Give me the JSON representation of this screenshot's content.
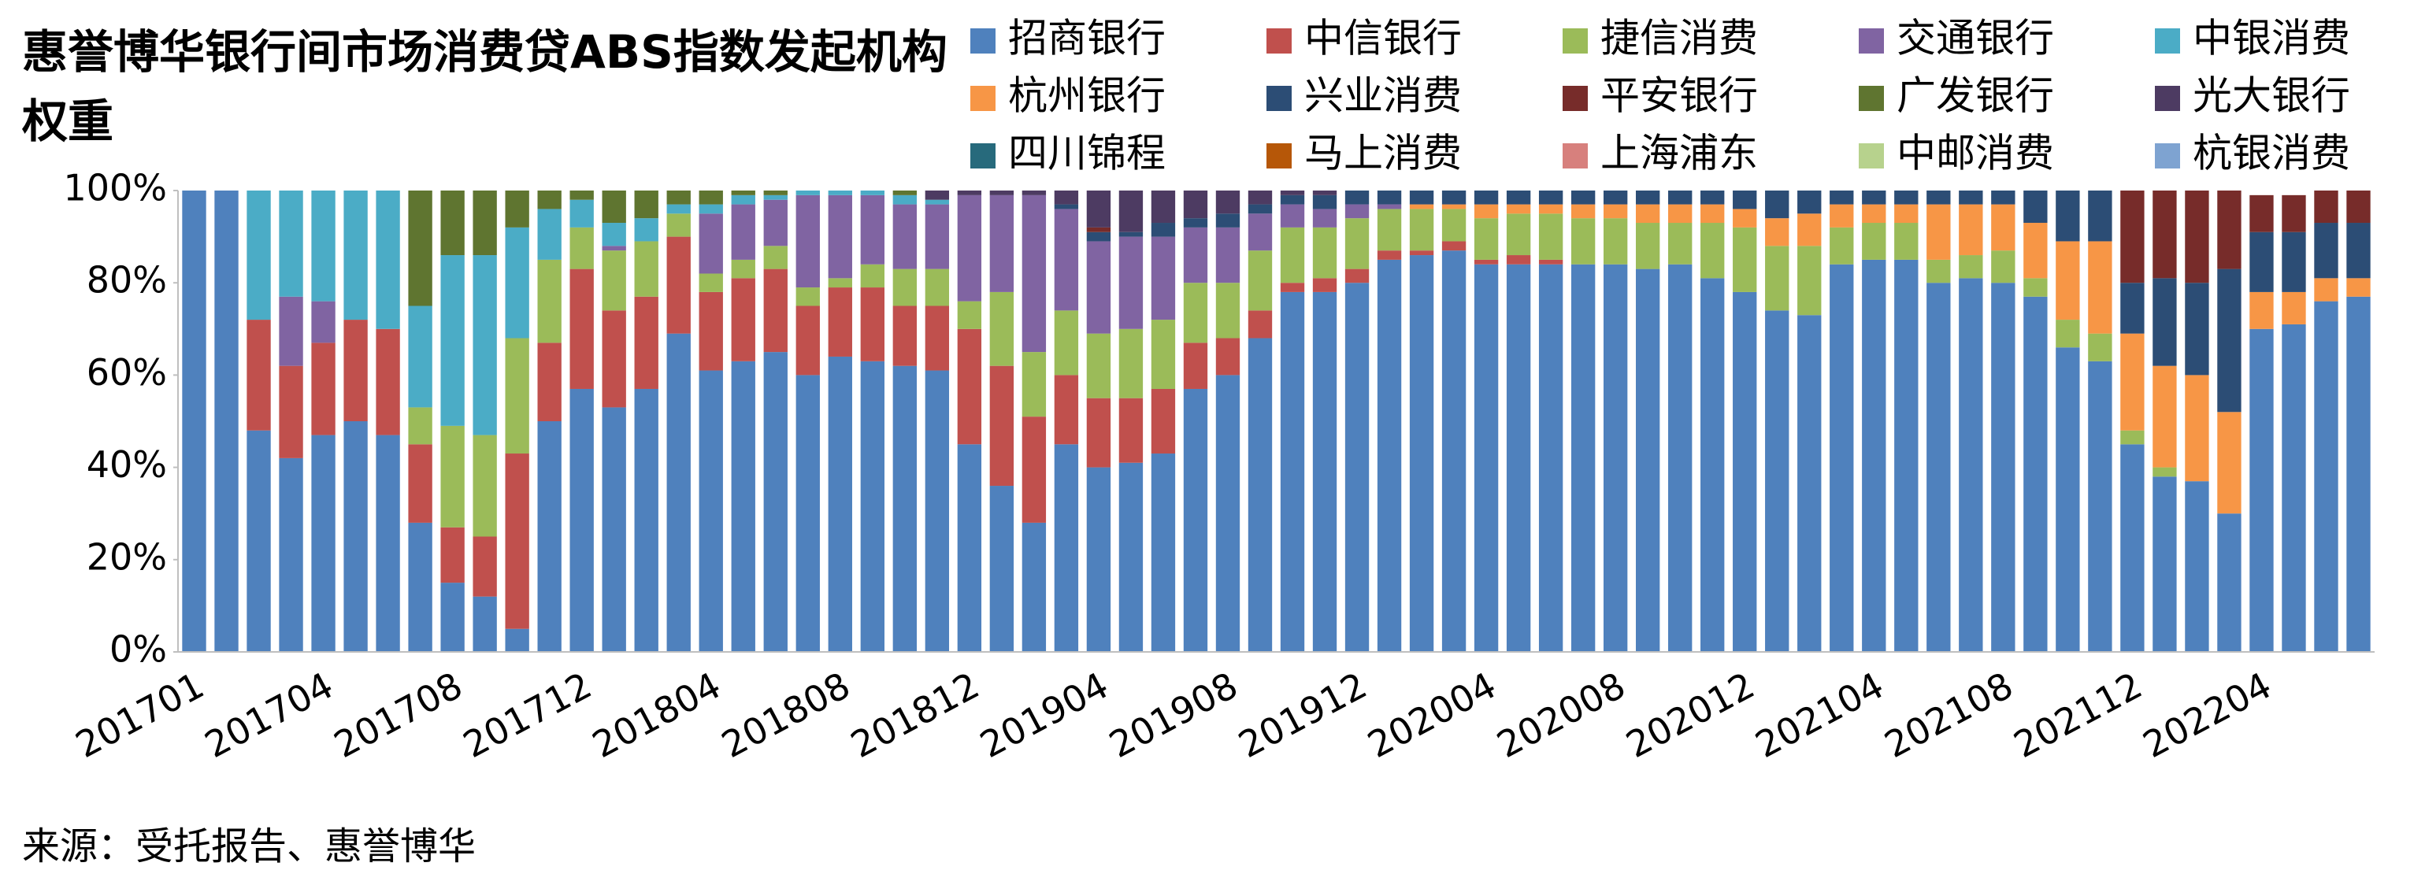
{
  "chart_data": {
    "type": "stacked_bar",
    "title": "惠誉博华银行间市场消费贷ABS指数发起机构权重",
    "source": "来源：受托报告、惠誉博华",
    "categories": [
      "201701",
      null,
      null,
      null,
      "201704",
      null,
      null,
      null,
      "201708",
      null,
      null,
      null,
      "201712",
      null,
      null,
      null,
      "201804",
      null,
      null,
      null,
      "201808",
      null,
      null,
      null,
      "201812",
      null,
      null,
      null,
      "201904",
      null,
      null,
      null,
      "201908",
      null,
      null,
      null,
      "201912",
      null,
      null,
      null,
      "202004",
      null,
      null,
      null,
      "202008",
      null,
      null,
      null,
      "202012",
      null,
      null,
      null,
      "202104",
      null,
      null,
      null,
      "202108",
      null,
      null,
      null,
      "202112",
      null,
      null,
      null,
      "202204",
      null,
      null,
      null
    ],
    "ylim": [
      0,
      100
    ],
    "yticks": [
      {
        "value": 0,
        "label": "0%"
      },
      {
        "value": 20,
        "label": "20%"
      },
      {
        "value": 40,
        "label": "40%"
      },
      {
        "value": 60,
        "label": "60%"
      },
      {
        "value": 80,
        "label": "80%"
      },
      {
        "value": 100,
        "label": "100%"
      }
    ],
    "legend": "top-right",
    "series": [
      {
        "name": "招商银行",
        "color": "#4f81bd",
        "values": [
          100,
          100,
          48,
          42,
          47,
          50,
          47,
          28,
          15,
          12,
          5,
          50,
          57,
          53,
          57,
          69,
          61,
          63,
          65,
          60,
          64,
          63,
          62,
          61,
          45,
          36,
          28,
          45,
          40,
          41,
          43,
          57,
          60,
          68,
          78,
          78,
          80,
          85,
          86,
          87,
          84,
          84,
          84,
          84,
          84,
          83,
          84,
          81,
          78,
          74,
          73,
          84,
          85,
          85,
          80,
          81,
          80,
          77,
          66,
          63,
          45,
          38,
          37,
          30,
          70,
          71,
          76,
          77
        ]
      },
      {
        "name": "中信银行",
        "color": "#c0504d",
        "values": [
          0,
          0,
          24,
          20,
          20,
          22,
          23,
          17,
          12,
          13,
          38,
          17,
          26,
          21,
          20,
          21,
          17,
          18,
          18,
          15,
          15,
          16,
          13,
          14,
          25,
          26,
          23,
          15,
          15,
          14,
          14,
          10,
          8,
          6,
          2,
          3,
          3,
          2,
          1,
          2,
          1,
          2,
          1,
          0,
          0,
          0,
          0,
          0,
          0,
          0,
          0,
          0,
          0,
          0,
          0,
          0,
          0,
          0,
          0,
          0,
          0,
          0,
          0,
          0,
          0,
          0,
          0,
          0
        ]
      },
      {
        "name": "捷信消费",
        "color": "#9bbb59",
        "values": [
          0,
          0,
          0,
          0,
          0,
          0,
          0,
          8,
          22,
          22,
          25,
          18,
          9,
          13,
          12,
          5,
          4,
          4,
          5,
          4,
          2,
          5,
          8,
          8,
          6,
          16,
          14,
          14,
          14,
          15,
          15,
          13,
          12,
          13,
          12,
          11,
          11,
          9,
          9,
          7,
          9,
          9,
          10,
          10,
          10,
          10,
          9,
          12,
          14,
          14,
          15,
          8,
          8,
          8,
          5,
          5,
          7,
          4,
          6,
          6,
          3,
          2,
          0,
          0,
          0,
          0,
          0,
          0
        ]
      },
      {
        "name": "交通银行",
        "color": "#8064a2",
        "values": [
          0,
          0,
          0,
          15,
          9,
          0,
          0,
          0,
          0,
          0,
          0,
          0,
          0,
          1,
          0,
          0,
          13,
          12,
          10,
          20,
          18,
          15,
          14,
          14,
          23,
          21,
          34,
          22,
          20,
          20,
          18,
          12,
          12,
          8,
          5,
          4,
          3,
          1,
          0,
          0,
          0,
          0,
          0,
          0,
          0,
          0,
          0,
          0,
          0,
          0,
          0,
          0,
          0,
          0,
          0,
          0,
          0,
          0,
          0,
          0,
          0,
          0,
          0,
          0,
          0,
          0,
          0,
          0
        ]
      },
      {
        "name": "中银消费",
        "color": "#4bacc6",
        "values": [
          0,
          0,
          28,
          23,
          24,
          28,
          30,
          22,
          37,
          39,
          24,
          11,
          6,
          5,
          5,
          2,
          2,
          2,
          1,
          1,
          1,
          1,
          2,
          1,
          0,
          0,
          0,
          0,
          0,
          0,
          0,
          0,
          0,
          0,
          0,
          0,
          0,
          0,
          0,
          0,
          0,
          0,
          0,
          0,
          0,
          0,
          0,
          0,
          0,
          0,
          0,
          0,
          0,
          0,
          0,
          0,
          0,
          0,
          0,
          0,
          0,
          0,
          0,
          0,
          0,
          0,
          0,
          0
        ]
      },
      {
        "name": "杭州银行",
        "color": "#f79646",
        "values": [
          0,
          0,
          0,
          0,
          0,
          0,
          0,
          0,
          0,
          0,
          0,
          0,
          0,
          0,
          0,
          0,
          0,
          0,
          0,
          0,
          0,
          0,
          0,
          0,
          0,
          0,
          0,
          0,
          0,
          0,
          0,
          0,
          0,
          0,
          0,
          0,
          0,
          0,
          1,
          1,
          3,
          2,
          2,
          3,
          3,
          4,
          4,
          4,
          4,
          6,
          7,
          5,
          4,
          4,
          12,
          11,
          10,
          12,
          17,
          20,
          21,
          22,
          23,
          22,
          8,
          7,
          5,
          4
        ]
      },
      {
        "name": "兴业消费",
        "color": "#2c4d75",
        "values": [
          0,
          0,
          0,
          0,
          0,
          0,
          0,
          0,
          0,
          0,
          0,
          0,
          0,
          0,
          0,
          0,
          0,
          0,
          0,
          0,
          0,
          0,
          0,
          0,
          0,
          0,
          0,
          1,
          2,
          1,
          3,
          2,
          3,
          2,
          2,
          3,
          3,
          3,
          3,
          3,
          3,
          3,
          3,
          3,
          3,
          3,
          3,
          3,
          4,
          6,
          5,
          3,
          3,
          3,
          3,
          3,
          3,
          7,
          11,
          11,
          11,
          19,
          20,
          31,
          13,
          13,
          12,
          12
        ]
      },
      {
        "name": "平安银行",
        "color": "#772c2a",
        "values": [
          0,
          0,
          0,
          0,
          0,
          0,
          0,
          0,
          0,
          0,
          0,
          0,
          0,
          0,
          0,
          0,
          0,
          0,
          0,
          0,
          0,
          0,
          0,
          0,
          0,
          0,
          0,
          0,
          1,
          0,
          0,
          0,
          0,
          0,
          0,
          0,
          0,
          0,
          0,
          0,
          0,
          0,
          0,
          0,
          0,
          0,
          0,
          0,
          0,
          0,
          0,
          0,
          0,
          0,
          0,
          0,
          0,
          0,
          0,
          0,
          20,
          19,
          20,
          17,
          8,
          8,
          7,
          7
        ]
      },
      {
        "name": "广发银行",
        "color": "#5f7530",
        "values": [
          0,
          0,
          0,
          0,
          0,
          0,
          0,
          25,
          14,
          14,
          8,
          4,
          2,
          7,
          6,
          3,
          3,
          1,
          1,
          0,
          0,
          0,
          1,
          0,
          0,
          0,
          0,
          0,
          0,
          0,
          0,
          0,
          0,
          0,
          0,
          0,
          0,
          0,
          0,
          0,
          0,
          0,
          0,
          0,
          0,
          0,
          0,
          0,
          0,
          0,
          0,
          0,
          0,
          0,
          0,
          0,
          0,
          0,
          0,
          0,
          0,
          0,
          0,
          0,
          0,
          0,
          0,
          0
        ]
      },
      {
        "name": "光大银行",
        "color": "#4d3b62",
        "values": [
          0,
          0,
          0,
          0,
          0,
          0,
          0,
          0,
          0,
          0,
          0,
          0,
          0,
          0,
          0,
          0,
          0,
          0,
          0,
          0,
          0,
          0,
          0,
          2,
          1,
          1,
          1,
          3,
          8,
          9,
          7,
          6,
          5,
          3,
          1,
          1,
          0,
          0,
          0,
          0,
          0,
          0,
          0,
          0,
          0,
          0,
          0,
          0,
          0,
          0,
          0,
          0,
          0,
          0,
          0,
          0,
          0,
          0,
          0,
          0,
          0,
          0,
          0,
          0,
          0,
          0,
          0,
          0
        ]
      },
      {
        "name": "四川锦程",
        "color": "#276a7c",
        "values": [
          0,
          0,
          0,
          0,
          0,
          0,
          0,
          0,
          0,
          0,
          0,
          0,
          0,
          0,
          0,
          0,
          0,
          0,
          0,
          0,
          0,
          0,
          0,
          0,
          0,
          0,
          0,
          0,
          0,
          0,
          0,
          0,
          0,
          0,
          0,
          0,
          0,
          0,
          0,
          0,
          0,
          0,
          0,
          0,
          0,
          0,
          0,
          0,
          0,
          0,
          0,
          0,
          0,
          0,
          0,
          0,
          0,
          0,
          0,
          0,
          0,
          0,
          0,
          0,
          0,
          0,
          0,
          0
        ]
      },
      {
        "name": "马上消费",
        "color": "#b65708",
        "values": [
          0,
          0,
          0,
          0,
          0,
          0,
          0,
          0,
          0,
          0,
          0,
          0,
          0,
          0,
          0,
          0,
          0,
          0,
          0,
          0,
          0,
          0,
          0,
          0,
          0,
          0,
          0,
          0,
          0,
          0,
          0,
          0,
          0,
          0,
          0,
          0,
          0,
          0,
          0,
          0,
          0,
          0,
          0,
          0,
          0,
          0,
          0,
          0,
          0,
          0,
          0,
          0,
          0,
          0,
          0,
          0,
          0,
          0,
          0,
          0,
          0,
          0,
          0,
          0,
          0,
          0,
          0,
          0
        ]
      },
      {
        "name": "上海浦东",
        "color": "#d7807d",
        "values": [
          0,
          0,
          0,
          0,
          0,
          0,
          0,
          0,
          0,
          0,
          0,
          0,
          0,
          0,
          0,
          0,
          0,
          0,
          0,
          0,
          0,
          0,
          0,
          0,
          0,
          0,
          0,
          0,
          0,
          0,
          0,
          0,
          0,
          0,
          0,
          0,
          0,
          0,
          0,
          0,
          0,
          0,
          0,
          0,
          0,
          0,
          0,
          0,
          0,
          0,
          0,
          0,
          0,
          0,
          0,
          0,
          0,
          0,
          0,
          0,
          0,
          0,
          0,
          0,
          0,
          0,
          0,
          0
        ]
      },
      {
        "name": "中邮消费",
        "color": "#b7d28d",
        "values": [
          0,
          0,
          0,
          0,
          0,
          0,
          0,
          0,
          0,
          0,
          0,
          0,
          0,
          0,
          0,
          0,
          0,
          0,
          0,
          0,
          0,
          0,
          0,
          0,
          0,
          0,
          0,
          0,
          0,
          0,
          0,
          0,
          0,
          0,
          0,
          0,
          0,
          0,
          0,
          0,
          0,
          0,
          0,
          0,
          0,
          0,
          0,
          0,
          0,
          0,
          0,
          0,
          0,
          0,
          0,
          0,
          0,
          0,
          0,
          0,
          0,
          0,
          0,
          0,
          0,
          0,
          0,
          0
        ]
      },
      {
        "name": "杭银消费",
        "color": "#7ea3d1",
        "values": [
          0,
          0,
          0,
          0,
          0,
          0,
          0,
          0,
          0,
          0,
          0,
          0,
          0,
          0,
          0,
          0,
          0,
          0,
          0,
          0,
          0,
          0,
          0,
          0,
          0,
          0,
          0,
          0,
          0,
          0,
          0,
          0,
          0,
          0,
          0,
          0,
          0,
          0,
          0,
          0,
          0,
          0,
          0,
          0,
          0,
          0,
          0,
          0,
          0,
          0,
          0,
          0,
          0,
          0,
          0,
          0,
          0,
          0,
          0,
          0,
          0,
          0,
          0,
          0,
          0,
          0,
          0,
          0
        ]
      }
    ]
  }
}
